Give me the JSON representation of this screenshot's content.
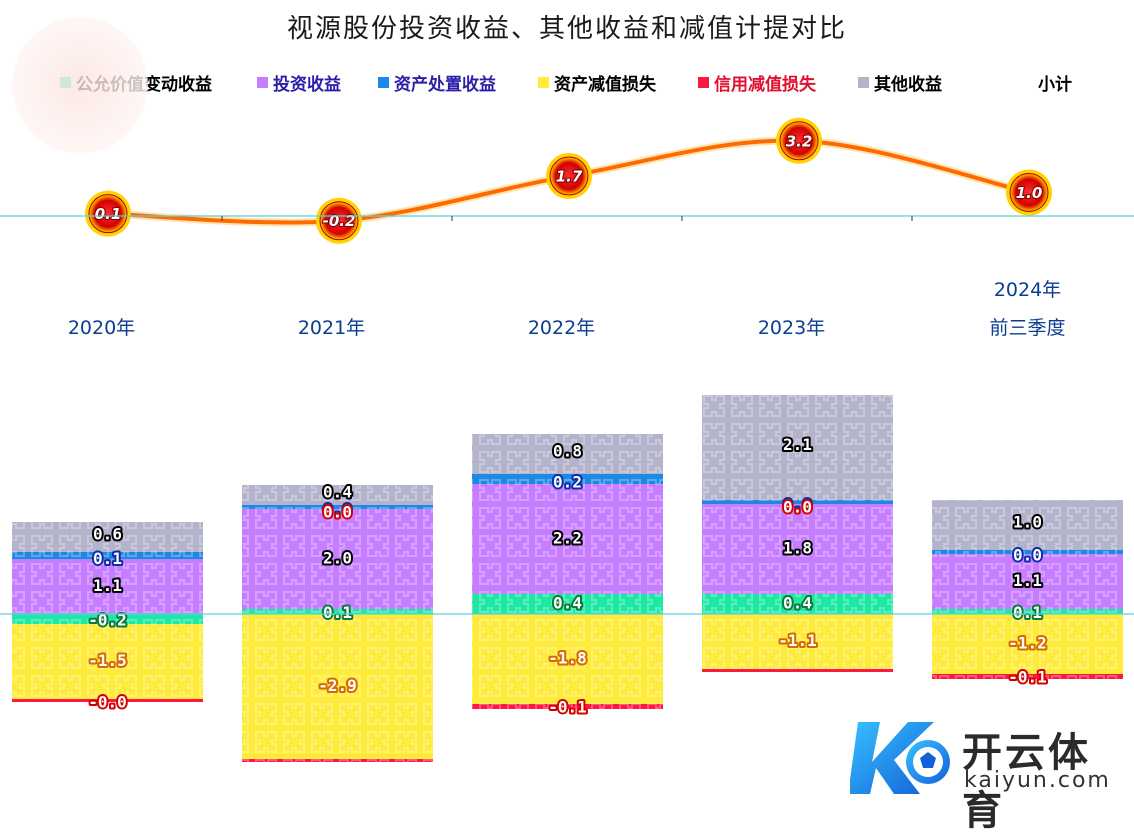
{
  "title": "视源股份投资收益、其他收益和减值计提对比",
  "legend": [
    {
      "label": "公允价值变动收益",
      "color": "#1de9a5",
      "text_color": "#000000"
    },
    {
      "label": "投资收益",
      "color": "#c77dff",
      "text_color": "#2a1fa8"
    },
    {
      "label": "资产处置收益",
      "color": "#1e88e5",
      "text_color": "#2a1fa8"
    },
    {
      "label": "资产减值损失",
      "color": "#ffeb3b",
      "text_color": "#000000"
    },
    {
      "label": "信用减值损失",
      "color": "#ff1744",
      "text_color": "#e01030"
    },
    {
      "label": "其他收益",
      "color": "#b3b3cc",
      "text_color": "#000000"
    },
    {
      "label": "小计",
      "color": "",
      "text_color": "#000000"
    }
  ],
  "chart_data": {
    "type": "bar",
    "stacked": true,
    "title": "视源股份投资收益、其他收益和减值计提对比",
    "categories": [
      "2020年",
      "2021年",
      "2022年",
      "2023年",
      "2024年\n前三季度"
    ],
    "series": [
      {
        "name": "公允价值变动收益",
        "color": "#1de9a5",
        "values": [
          -0.2,
          0.1,
          0.4,
          0.4,
          0.1
        ]
      },
      {
        "name": "投资收益",
        "color": "#c77dff",
        "values": [
          1.1,
          2.0,
          2.2,
          1.8,
          1.1
        ]
      },
      {
        "name": "资产处置收益",
        "color": "#1e88e5",
        "values": [
          0.1,
          0.0,
          0.2,
          0.0,
          0.0
        ]
      },
      {
        "name": "资产减值损失",
        "color": "#ffeb3b",
        "values": [
          -1.5,
          -2.9,
          -1.8,
          -1.1,
          -1.2
        ]
      },
      {
        "name": "信用减值损失",
        "color": "#ff1744",
        "values": [
          -0.0,
          -0.0,
          -0.1,
          0.0,
          -0.1
        ]
      },
      {
        "name": "其他收益",
        "color": "#b3b3cc",
        "values": [
          0.6,
          0.4,
          0.8,
          2.1,
          1.0
        ]
      }
    ],
    "subtotal": {
      "name": "小计",
      "color": "#ff6a00",
      "values": [
        0.1,
        -0.2,
        1.7,
        3.2,
        1.0
      ]
    },
    "bar_labels": [
      {
        "other": "0.6",
        "disposal": "0.1",
        "invest": "1.1",
        "fair": "-0.2",
        "impair": "-1.5",
        "credit": "-0.0"
      },
      {
        "other": "0.4",
        "disposal": "0.0",
        "invest": "2.0",
        "fair": "0.1",
        "impair": "-2.9",
        "credit": ""
      },
      {
        "other": "0.8",
        "disposal": "0.2",
        "invest": "2.2",
        "fair": "0.4",
        "impair": "-1.8",
        "credit": "-0.1"
      },
      {
        "other": "2.1",
        "disposal": "0.0",
        "invest": "1.8",
        "fair": "0.4",
        "impair": "-1.1",
        "credit": ""
      },
      {
        "other": "1.0",
        "disposal": "0.0",
        "invest": "1.1",
        "fair": "0.1",
        "impair": "-1.2",
        "credit": "-0.1"
      }
    ],
    "subtotal_labels": [
      "0.1",
      "-0.2",
      "1.7",
      "3.2",
      "1.0"
    ]
  },
  "logo": {
    "name": "开云体育",
    "url": "kaiyun.com",
    "mark": "K"
  }
}
